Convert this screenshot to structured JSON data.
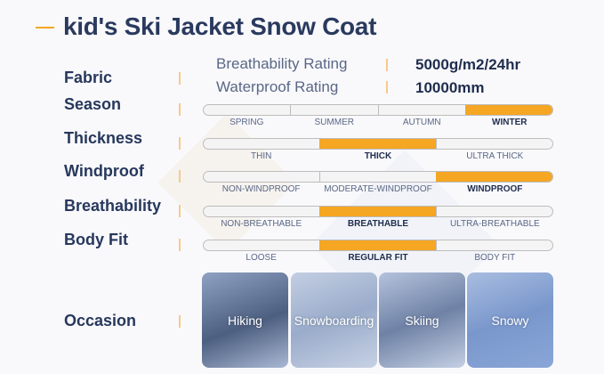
{
  "title": "kid's Ski Jacket Snow Coat",
  "accent": "#f5a623",
  "fabric": {
    "label": "Fabric",
    "rows": [
      {
        "name": "Breathability Rating",
        "value": "5000g/m2/24hr"
      },
      {
        "name": "Waterproof Rating",
        "value": "10000mm"
      }
    ]
  },
  "scales": [
    {
      "label": "Season",
      "options": [
        "SPRING",
        "SUMMER",
        "AUTUMN",
        "WINTER"
      ],
      "selected": 3
    },
    {
      "label": "Thickness",
      "options": [
        "THIN",
        "THICK",
        "ULTRA THICK"
      ],
      "selected": 1
    },
    {
      "label": "Windproof",
      "options": [
        "NON-WINDPROOF",
        "MODERATE-WINDPROOF",
        "WINDPROOF"
      ],
      "selected": 2
    },
    {
      "label": "Breathability",
      "options": [
        "NON-BREATHABLE",
        "BREATHABLE",
        "ULTRA-BREATHABLE"
      ],
      "selected": 1
    },
    {
      "label": "Body Fit",
      "options": [
        "LOOSE",
        "REGULAR FIT",
        "BODY FIT"
      ],
      "selected": 1
    }
  ],
  "occasion": {
    "label": "Occasion",
    "items": [
      "Hiking",
      "Snowboarding",
      "Skiing",
      "Snowy"
    ]
  }
}
